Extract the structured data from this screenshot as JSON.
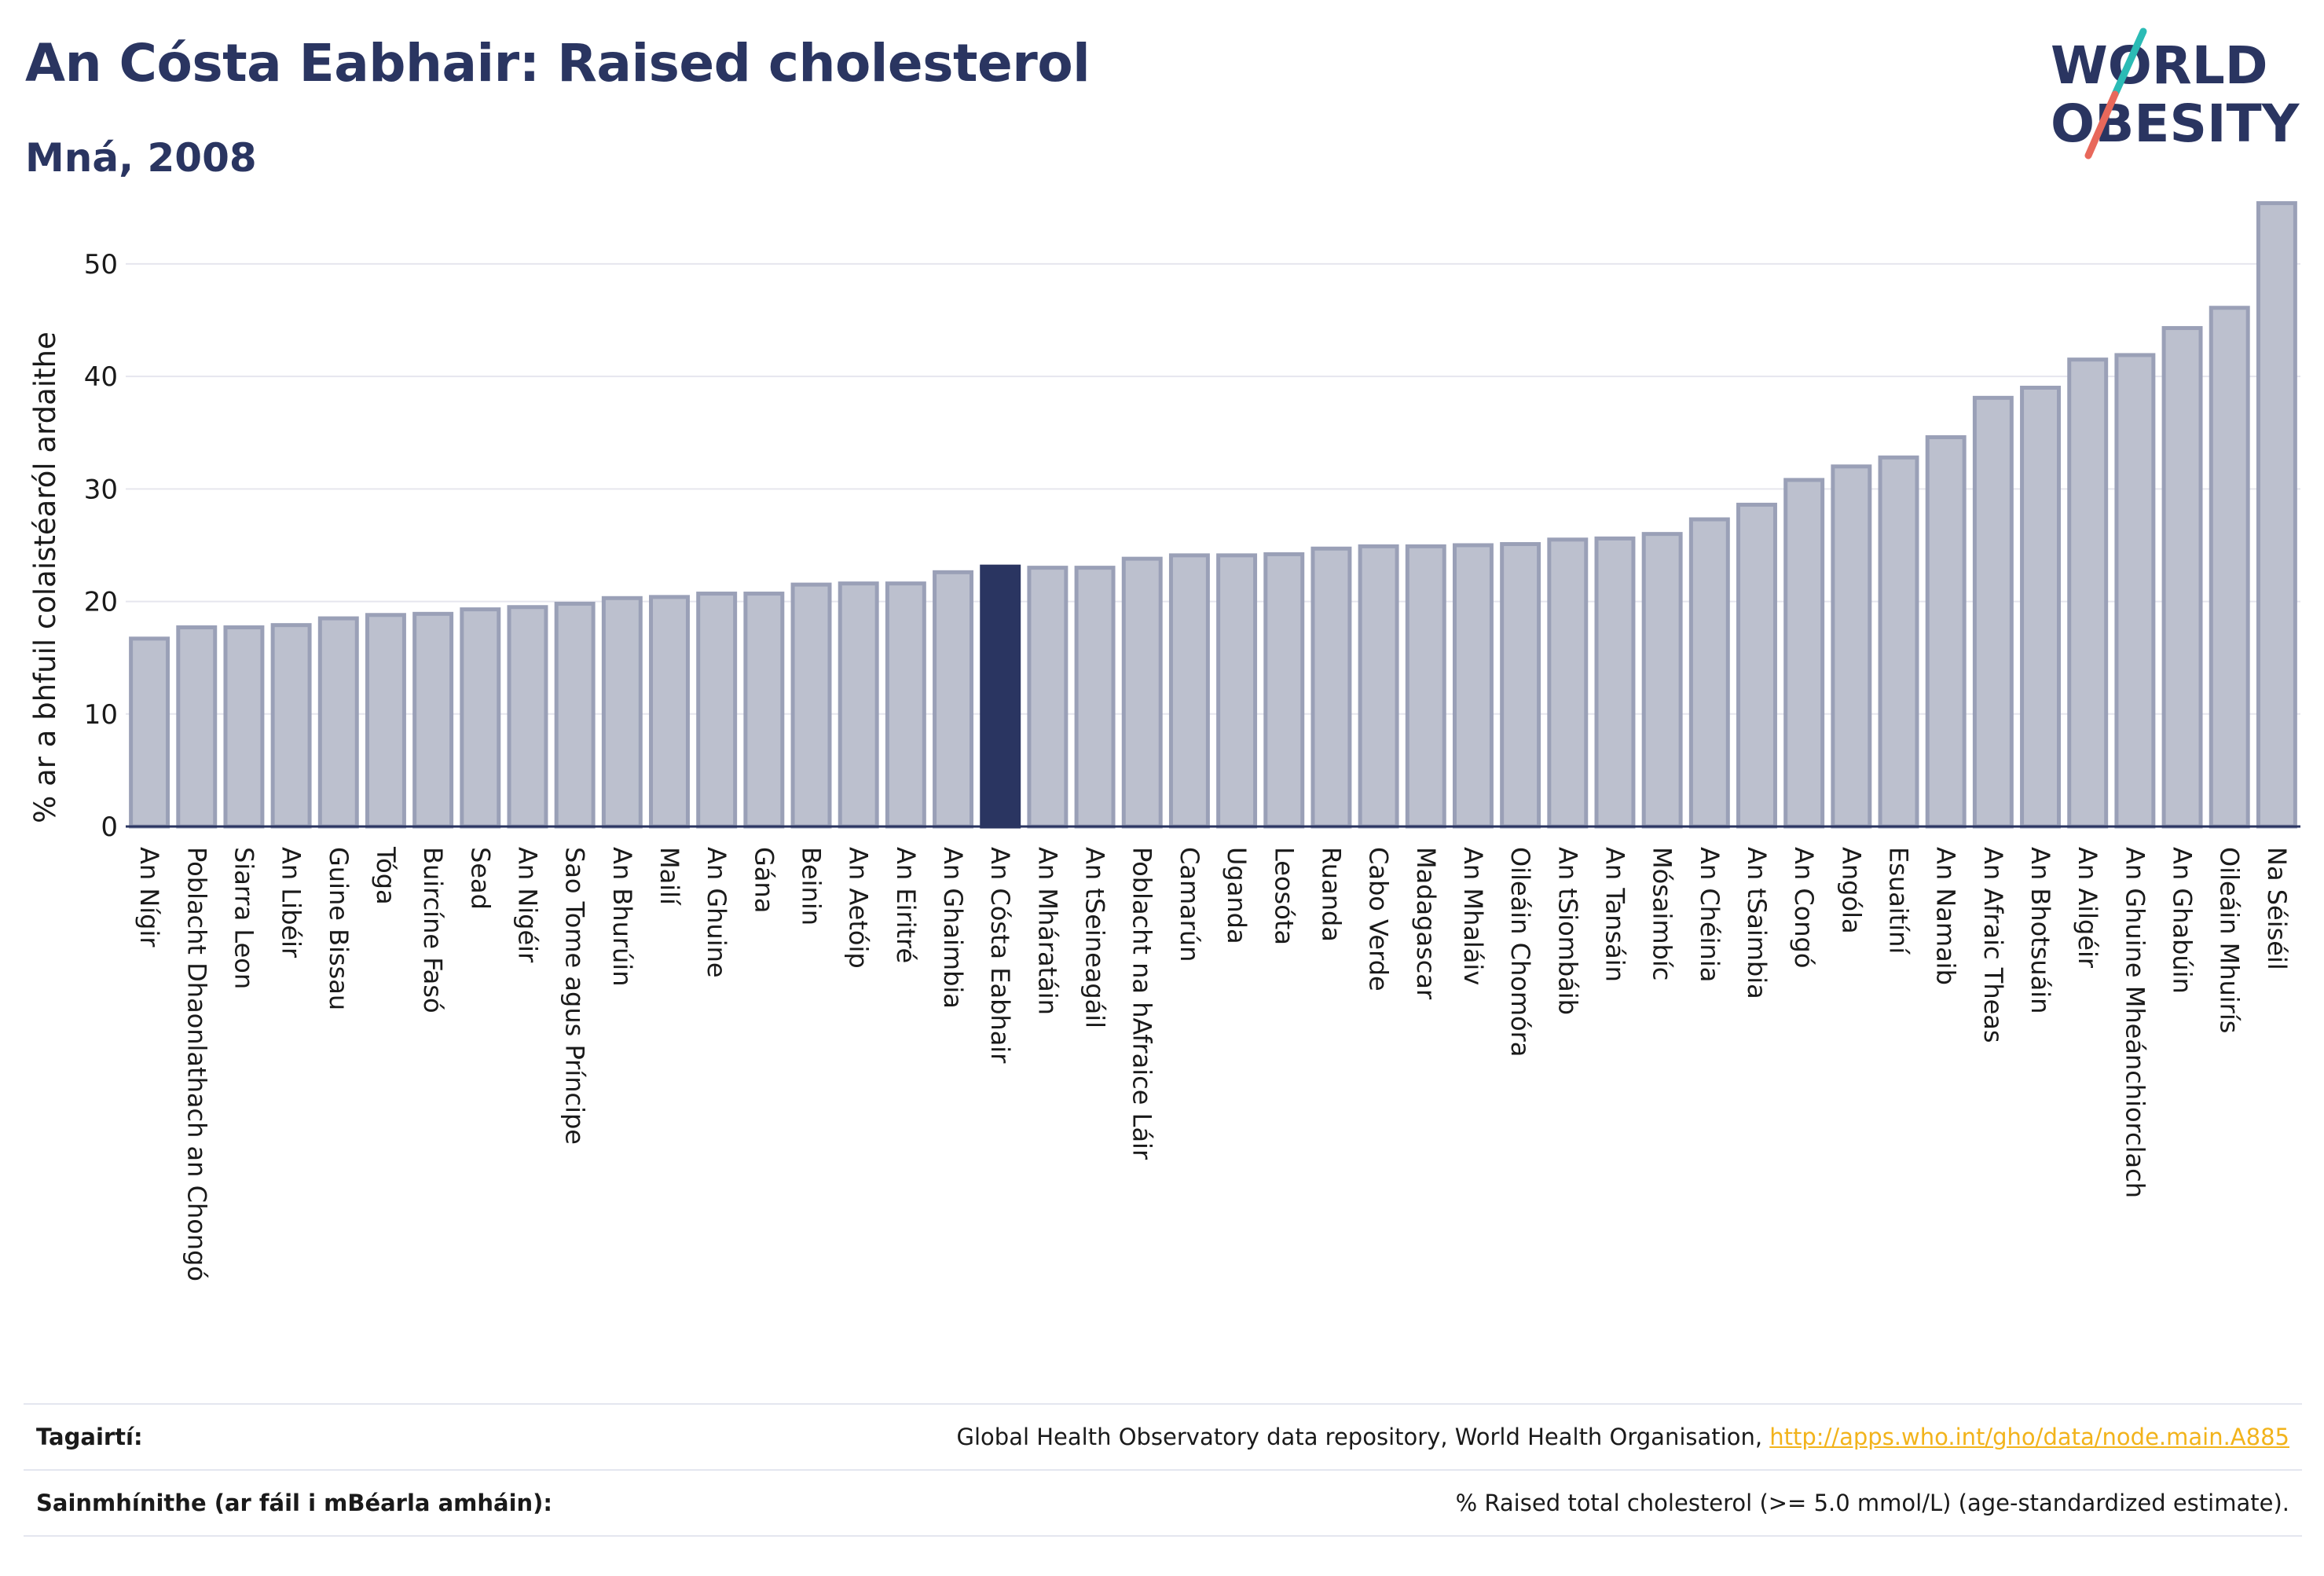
{
  "header": {
    "title": "An Cósta Eabhair: Raised cholesterol",
    "subtitle": "Mná, 2008"
  },
  "logo": {
    "line1": "WORLD",
    "line2": "OBESITY",
    "colors": {
      "text": "#2a3561",
      "slash_teal": "#2bbbb5",
      "slash_coral": "#e8685b"
    }
  },
  "chart_data": {
    "type": "bar",
    "title": "An Cósta Eabhair: Raised cholesterol",
    "subtitle": "Mná, 2008",
    "xlabel": "",
    "ylabel": "% ar a bhfuil colaistéaról ardaithe",
    "ylim": [
      0,
      56
    ],
    "yticks": [
      0,
      10,
      20,
      30,
      40,
      50
    ],
    "grid": true,
    "highlight": "An Cósta Eabhair",
    "colors": {
      "bar": "#bcc0ce",
      "bar_border": "#9aa0b7",
      "highlight": "#2a3561",
      "grid": "#e6e6ee",
      "axis": "#2a3561"
    },
    "categories": [
      "An Nígir",
      "Poblacht Dhaonlathach an Chongó",
      "Siarra Leon",
      "An Libéir",
      "Guine Bissau",
      "Tóga",
      "Buircíne Fasó",
      "Sead",
      "An Nigéir",
      "Sao Tome agus Príncipe",
      "An Bhurúin",
      "Mailí",
      "An Ghuine",
      "Gána",
      "Beinin",
      "An Aetóip",
      "An Eiritré",
      "An Ghaimbia",
      "An Cósta Eabhair",
      "An Mháratáin",
      "An tSeineagáil",
      "Poblacht na hAfraice Láir",
      "Camarún",
      "Uganda",
      "Leosóta",
      "Ruanda",
      "Cabo Verde",
      "Madagascar",
      "An Mhaláiv",
      "Oileáin Chomóra",
      "An tSiombáib",
      "An Tansáin",
      "Mósaimbíc",
      "An Chéinia",
      "An tSaimbia",
      "An Congó",
      "Angóla",
      "Esuaitíní",
      "An Namaib",
      "An Afraic Theas",
      "An Bhotsuáin",
      "An Ailgéir",
      "An Ghuine Mheánchiorclach",
      "An Ghabúin",
      "Oileáin Mhuirís",
      "Na Séiséil"
    ],
    "values": [
      16.7,
      17.7,
      17.7,
      17.9,
      18.5,
      18.8,
      18.9,
      19.3,
      19.5,
      19.8,
      20.3,
      20.4,
      20.7,
      20.7,
      21.5,
      21.6,
      21.6,
      22.6,
      23.1,
      23.0,
      23.0,
      23.8,
      24.1,
      24.1,
      24.2,
      24.7,
      24.9,
      24.9,
      25.0,
      25.1,
      25.5,
      25.6,
      26.0,
      27.3,
      28.6,
      30.8,
      32.0,
      32.8,
      34.6,
      38.1,
      39.0,
      41.5,
      41.9,
      44.3,
      46.1,
      55.4
    ]
  },
  "footer": {
    "rows": [
      {
        "key": "Tagairtí:",
        "value": "Global Health Observatory data repository, World Health Organisation, ",
        "link": "http://apps.who.int/gho/data/node.main.A885"
      },
      {
        "key": "Sainmhínithe (ar fáil i mBéarla amháin):",
        "value": "% Raised total cholesterol (>= 5.0 mmol/L) (age-standardized estimate).",
        "link": ""
      }
    ]
  }
}
